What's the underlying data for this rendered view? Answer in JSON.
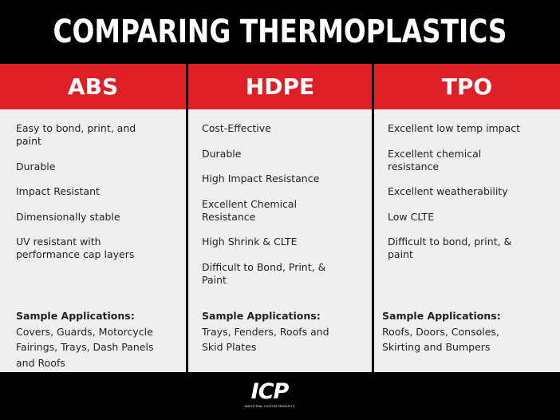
{
  "title": "COMPARING THERMOPLASTICS",
  "columns": [
    {
      "header": "ABS",
      "features": [
        "Easy to bond, print, and paint",
        "Durable",
        "Impact Resistant",
        "Dimensionally stable",
        "UV resistant with performance cap layers"
      ],
      "applications_label": "Sample Applications:",
      "applications": "Covers, Guards, Motorcycle Fairings, Trays, Dash Panels and Roofs"
    },
    {
      "header": "HDPE",
      "features": [
        "Cost-Effective",
        "Durable",
        "High Impact Resistance",
        "Excellent Chemical Resistance",
        "High Shrink & CLTE",
        "Difficult to Bond, Print, & Paint"
      ],
      "applications_label": "Sample Applications:",
      "applications": "Trays, Fenders, Roofs and Skid Plates"
    },
    {
      "header": "TPO",
      "features": [
        "Excellent low temp impact",
        "Excellent chemical resistance",
        "Excellent weatherability",
        "Low CLTE",
        "Difficult to bond, print, & paint"
      ],
      "applications_label": "Sample Applications:",
      "applications": "Roofs, Doors, Consoles, Skirting and Bumpers"
    }
  ],
  "logo": {
    "mark": "ICP",
    "caption": "INDUSTRIAL CUSTOM PRODUCTS"
  }
}
